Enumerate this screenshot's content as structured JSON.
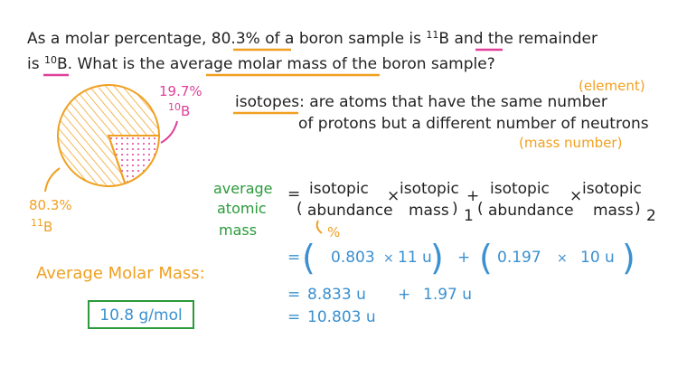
{
  "question": {
    "line1": [
      "As a molar percentage, ",
      "80.3%",
      " of a boron sample is ",
      "11",
      "B",
      " and the remainder"
    ],
    "line2": [
      "is ",
      "10",
      "B",
      ".  What is the ",
      "average molar mass",
      " of the boron sample?"
    ]
  },
  "pie": {
    "values": [
      80.3,
      19.7
    ],
    "value_labels": [
      "80.3%",
      "19.7%"
    ],
    "isotope_masses": [
      "11",
      "10"
    ],
    "symbol": "B"
  },
  "definition": {
    "term": "isotopes",
    "text1": ": are atoms that have the same number",
    "text2": "of protons but a different number of neutrons",
    "note1": "(element)",
    "note2": "(mass number)"
  },
  "formula": {
    "lhs": [
      "average",
      "atomic",
      "mass"
    ],
    "eq": "=",
    "open": "(",
    "close": ")",
    "isotopic": "isotopic",
    "abundance": "abundance",
    "mass": "mass",
    "times": "×",
    "plus": "+",
    "sub1": "1",
    "sub2": "2",
    "percent": "%"
  },
  "calculation": {
    "line1": [
      "=",
      "(",
      "0.803",
      "×",
      "11 u",
      ")",
      "+",
      "(",
      "0.197",
      "×",
      "10 u",
      ")"
    ],
    "line2": [
      "=",
      "8.833 u",
      "+",
      "1.97 u"
    ],
    "line3": [
      "=",
      "10.803 u"
    ]
  },
  "answer": {
    "label": "Average Molar Mass:",
    "value": "10.8 g/mol"
  }
}
